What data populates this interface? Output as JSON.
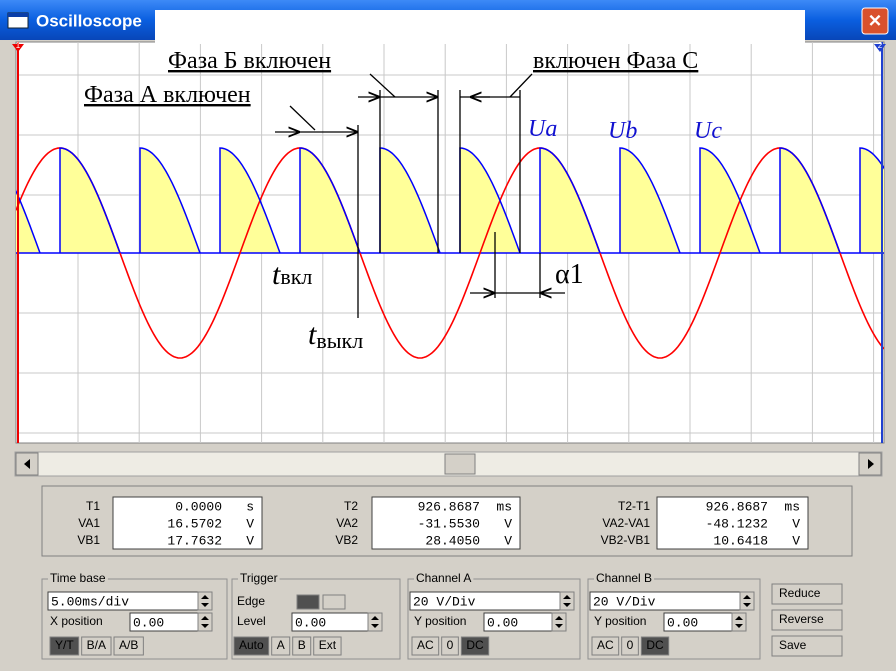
{
  "window": {
    "title": "Oscilloscope",
    "close": "✕"
  },
  "annotations": {
    "phase_b": "Фаза Б включен",
    "phase_c": "включен Фаза С",
    "phase_a": "Фаза А включен",
    "ua": "Ua",
    "ub": "Ub",
    "uc": "Uc",
    "t_on": {
      "t": "t",
      "sub": "вкл"
    },
    "t_off": {
      "t": "t",
      "sub": "выкл"
    },
    "alpha": "α1"
  },
  "cursors": {
    "c1": "1",
    "c2": "2"
  },
  "readout": {
    "col1": [
      {
        "label": "T1",
        "value": "0.0000",
        "unit": "s"
      },
      {
        "label": "VA1",
        "value": "16.5702",
        "unit": "V"
      },
      {
        "label": "VB1",
        "value": "17.7632",
        "unit": "V"
      }
    ],
    "col2": [
      {
        "label": "T2",
        "value": "926.8687",
        "unit": "ms"
      },
      {
        "label": "VA2",
        "value": "-31.5530",
        "unit": "V"
      },
      {
        "label": "VB2",
        "value": "28.4050",
        "unit": "V"
      }
    ],
    "col3": [
      {
        "label": "T2-T1",
        "value": "926.8687",
        "unit": "ms"
      },
      {
        "label": "VA2-VA1",
        "value": "-48.1232",
        "unit": "V"
      },
      {
        "label": "VB2-VB1",
        "value": "10.6418",
        "unit": "V"
      }
    ]
  },
  "timebase": {
    "legend": "Time base",
    "scale": "5.00ms/div",
    "xpos_label": "X position",
    "xpos": "0.00",
    "buttons": [
      "Y/T",
      "B/A",
      "A/B"
    ]
  },
  "trigger": {
    "legend": "Trigger",
    "edge": "Edge",
    "level_label": "Level",
    "level": "0.00",
    "buttons": [
      "Auto",
      "A",
      "B",
      "Ext"
    ]
  },
  "channel_a": {
    "legend": "Channel A",
    "scale": "20 V/Div",
    "ypos_label": "Y position",
    "ypos": "0.00",
    "buttons": [
      "AC",
      "0",
      "DC"
    ]
  },
  "channel_b": {
    "legend": "Channel B",
    "scale": "20 V/Div",
    "ypos_label": "Y position",
    "ypos": "0.00",
    "buttons": [
      "AC",
      "0",
      "DC"
    ]
  },
  "buttons": [
    "Reduce",
    "Reverse",
    "Save"
  ]
}
